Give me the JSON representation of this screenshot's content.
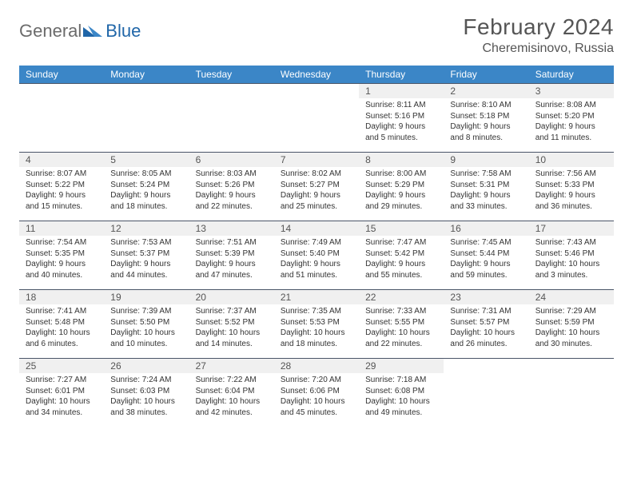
{
  "brand": {
    "part1": "General",
    "part2": "Blue"
  },
  "colors": {
    "header_bg": "#3b86c7",
    "header_text": "#ffffff",
    "daynum_bg": "#f0f0f0",
    "border": "#4a5568",
    "brand_gray": "#6b6b6b",
    "brand_blue": "#2066a8"
  },
  "title": "February 2024",
  "location": "Cheremisinovo, Russia",
  "weekdays": [
    "Sunday",
    "Monday",
    "Tuesday",
    "Wednesday",
    "Thursday",
    "Friday",
    "Saturday"
  ],
  "weeks": [
    [
      null,
      null,
      null,
      null,
      {
        "n": "1",
        "sr": "8:11 AM",
        "ss": "5:16 PM",
        "dl": "9 hours and 5 minutes."
      },
      {
        "n": "2",
        "sr": "8:10 AM",
        "ss": "5:18 PM",
        "dl": "9 hours and 8 minutes."
      },
      {
        "n": "3",
        "sr": "8:08 AM",
        "ss": "5:20 PM",
        "dl": "9 hours and 11 minutes."
      }
    ],
    [
      {
        "n": "4",
        "sr": "8:07 AM",
        "ss": "5:22 PM",
        "dl": "9 hours and 15 minutes."
      },
      {
        "n": "5",
        "sr": "8:05 AM",
        "ss": "5:24 PM",
        "dl": "9 hours and 18 minutes."
      },
      {
        "n": "6",
        "sr": "8:03 AM",
        "ss": "5:26 PM",
        "dl": "9 hours and 22 minutes."
      },
      {
        "n": "7",
        "sr": "8:02 AM",
        "ss": "5:27 PM",
        "dl": "9 hours and 25 minutes."
      },
      {
        "n": "8",
        "sr": "8:00 AM",
        "ss": "5:29 PM",
        "dl": "9 hours and 29 minutes."
      },
      {
        "n": "9",
        "sr": "7:58 AM",
        "ss": "5:31 PM",
        "dl": "9 hours and 33 minutes."
      },
      {
        "n": "10",
        "sr": "7:56 AM",
        "ss": "5:33 PM",
        "dl": "9 hours and 36 minutes."
      }
    ],
    [
      {
        "n": "11",
        "sr": "7:54 AM",
        "ss": "5:35 PM",
        "dl": "9 hours and 40 minutes."
      },
      {
        "n": "12",
        "sr": "7:53 AM",
        "ss": "5:37 PM",
        "dl": "9 hours and 44 minutes."
      },
      {
        "n": "13",
        "sr": "7:51 AM",
        "ss": "5:39 PM",
        "dl": "9 hours and 47 minutes."
      },
      {
        "n": "14",
        "sr": "7:49 AM",
        "ss": "5:40 PM",
        "dl": "9 hours and 51 minutes."
      },
      {
        "n": "15",
        "sr": "7:47 AM",
        "ss": "5:42 PM",
        "dl": "9 hours and 55 minutes."
      },
      {
        "n": "16",
        "sr": "7:45 AM",
        "ss": "5:44 PM",
        "dl": "9 hours and 59 minutes."
      },
      {
        "n": "17",
        "sr": "7:43 AM",
        "ss": "5:46 PM",
        "dl": "10 hours and 3 minutes."
      }
    ],
    [
      {
        "n": "18",
        "sr": "7:41 AM",
        "ss": "5:48 PM",
        "dl": "10 hours and 6 minutes."
      },
      {
        "n": "19",
        "sr": "7:39 AM",
        "ss": "5:50 PM",
        "dl": "10 hours and 10 minutes."
      },
      {
        "n": "20",
        "sr": "7:37 AM",
        "ss": "5:52 PM",
        "dl": "10 hours and 14 minutes."
      },
      {
        "n": "21",
        "sr": "7:35 AM",
        "ss": "5:53 PM",
        "dl": "10 hours and 18 minutes."
      },
      {
        "n": "22",
        "sr": "7:33 AM",
        "ss": "5:55 PM",
        "dl": "10 hours and 22 minutes."
      },
      {
        "n": "23",
        "sr": "7:31 AM",
        "ss": "5:57 PM",
        "dl": "10 hours and 26 minutes."
      },
      {
        "n": "24",
        "sr": "7:29 AM",
        "ss": "5:59 PM",
        "dl": "10 hours and 30 minutes."
      }
    ],
    [
      {
        "n": "25",
        "sr": "7:27 AM",
        "ss": "6:01 PM",
        "dl": "10 hours and 34 minutes."
      },
      {
        "n": "26",
        "sr": "7:24 AM",
        "ss": "6:03 PM",
        "dl": "10 hours and 38 minutes."
      },
      {
        "n": "27",
        "sr": "7:22 AM",
        "ss": "6:04 PM",
        "dl": "10 hours and 42 minutes."
      },
      {
        "n": "28",
        "sr": "7:20 AM",
        "ss": "6:06 PM",
        "dl": "10 hours and 45 minutes."
      },
      {
        "n": "29",
        "sr": "7:18 AM",
        "ss": "6:08 PM",
        "dl": "10 hours and 49 minutes."
      },
      null,
      null
    ]
  ],
  "labels": {
    "sunrise": "Sunrise:",
    "sunset": "Sunset:",
    "daylight": "Daylight:"
  }
}
